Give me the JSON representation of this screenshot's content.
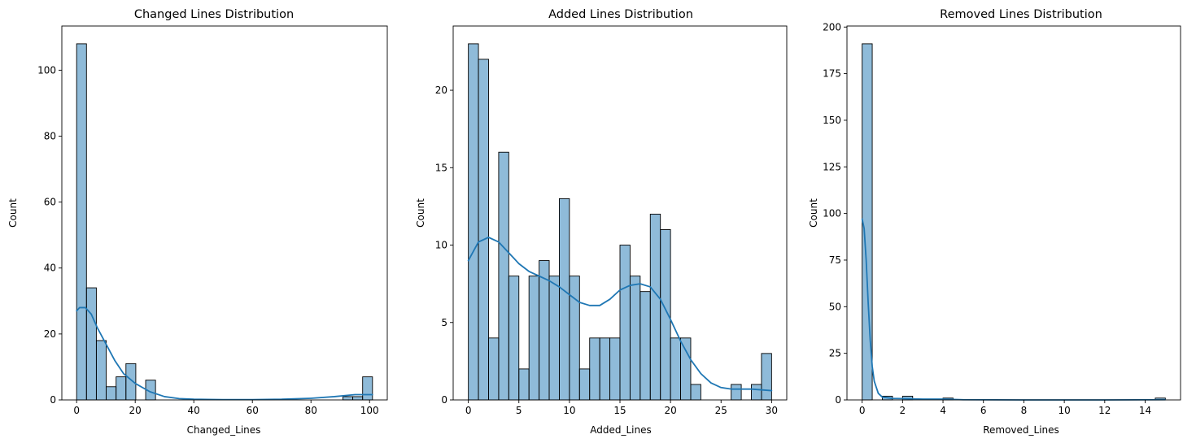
{
  "chart_data": [
    {
      "type": "bar",
      "title": "Changed Lines Distribution",
      "xlabel": "Changed_Lines",
      "ylabel": "Count",
      "xlim": [
        -5.05,
        106.05
      ],
      "ylim": [
        0,
        113.4
      ],
      "xticks": [
        0,
        20,
        40,
        60,
        80,
        100
      ],
      "yticks": [
        0,
        20,
        40,
        60,
        80,
        100
      ],
      "bin_width": 3.3667,
      "bins": [
        {
          "x": 0.0,
          "count": 108
        },
        {
          "x": 3.367,
          "count": 34
        },
        {
          "x": 6.733,
          "count": 18
        },
        {
          "x": 10.1,
          "count": 4
        },
        {
          "x": 13.467,
          "count": 7
        },
        {
          "x": 16.833,
          "count": 11
        },
        {
          "x": 20.2,
          "count": 0
        },
        {
          "x": 23.567,
          "count": 6
        },
        {
          "x": 90.9,
          "count": 1
        },
        {
          "x": 94.267,
          "count": 1
        },
        {
          "x": 97.633,
          "count": 7
        }
      ],
      "kde": [
        [
          0,
          27
        ],
        [
          1,
          28
        ],
        [
          3,
          28
        ],
        [
          5,
          26
        ],
        [
          7,
          22
        ],
        [
          10,
          17
        ],
        [
          13,
          12
        ],
        [
          16,
          8
        ],
        [
          20,
          5
        ],
        [
          25,
          2.5
        ],
        [
          30,
          1
        ],
        [
          35,
          0.4
        ],
        [
          40,
          0.2
        ],
        [
          50,
          0.1
        ],
        [
          60,
          0.1
        ],
        [
          70,
          0.2
        ],
        [
          80,
          0.5
        ],
        [
          88,
          1
        ],
        [
          95,
          1.6
        ],
        [
          101,
          1.6
        ]
      ],
      "bar_color": "#1f77b4",
      "bar_alpha": 0.5,
      "line_color": "#1f77b4"
    },
    {
      "type": "bar",
      "title": "Added Lines Distribution",
      "xlabel": "Added_Lines",
      "ylabel": "Count",
      "xlim": [
        -1.5,
        31.5
      ],
      "ylim": [
        0,
        24.15
      ],
      "xticks": [
        0,
        5,
        10,
        15,
        20,
        25,
        30
      ],
      "yticks": [
        0,
        5,
        10,
        15,
        20
      ],
      "bin_width": 1.0,
      "bins": [
        {
          "x": 0,
          "count": 23
        },
        {
          "x": 1,
          "count": 22
        },
        {
          "x": 2,
          "count": 4
        },
        {
          "x": 3,
          "count": 16
        },
        {
          "x": 4,
          "count": 8
        },
        {
          "x": 5,
          "count": 2
        },
        {
          "x": 6,
          "count": 8
        },
        {
          "x": 7,
          "count": 9
        },
        {
          "x": 8,
          "count": 8
        },
        {
          "x": 9,
          "count": 13
        },
        {
          "x": 10,
          "count": 8
        },
        {
          "x": 11,
          "count": 2
        },
        {
          "x": 12,
          "count": 4
        },
        {
          "x": 13,
          "count": 4
        },
        {
          "x": 14,
          "count": 4
        },
        {
          "x": 15,
          "count": 10
        },
        {
          "x": 16,
          "count": 8
        },
        {
          "x": 17,
          "count": 7
        },
        {
          "x": 18,
          "count": 12
        },
        {
          "x": 19,
          "count": 11
        },
        {
          "x": 20,
          "count": 4
        },
        {
          "x": 21,
          "count": 4
        },
        {
          "x": 22,
          "count": 1
        },
        {
          "x": 23,
          "count": 0
        },
        {
          "x": 24,
          "count": 0
        },
        {
          "x": 25,
          "count": 0
        },
        {
          "x": 26,
          "count": 1
        },
        {
          "x": 27,
          "count": 0
        },
        {
          "x": 28,
          "count": 1
        },
        {
          "x": 29,
          "count": 3
        }
      ],
      "kde": [
        [
          0,
          9
        ],
        [
          1,
          10.2
        ],
        [
          2,
          10.5
        ],
        [
          3,
          10.2
        ],
        [
          4,
          9.5
        ],
        [
          5,
          8.8
        ],
        [
          6,
          8.3
        ],
        [
          7,
          8
        ],
        [
          8,
          7.7
        ],
        [
          9,
          7.3
        ],
        [
          10,
          6.8
        ],
        [
          11,
          6.3
        ],
        [
          12,
          6.1
        ],
        [
          13,
          6.1
        ],
        [
          14,
          6.5
        ],
        [
          15,
          7.1
        ],
        [
          16,
          7.4
        ],
        [
          17,
          7.5
        ],
        [
          18,
          7.3
        ],
        [
          19,
          6.5
        ],
        [
          20,
          5.2
        ],
        [
          21,
          3.8
        ],
        [
          22,
          2.6
        ],
        [
          23,
          1.7
        ],
        [
          24,
          1.1
        ],
        [
          25,
          0.8
        ],
        [
          26,
          0.7
        ],
        [
          28,
          0.7
        ],
        [
          30,
          0.6
        ]
      ],
      "bar_color": "#1f77b4",
      "bar_alpha": 0.5,
      "line_color": "#1f77b4"
    },
    {
      "type": "bar",
      "title": "Removed Lines Distribution",
      "xlabel": "Removed_Lines",
      "ylabel": "Count",
      "xlim": [
        -0.75,
        15.75
      ],
      "ylim": [
        0,
        200.55
      ],
      "xticks": [
        0,
        2,
        4,
        6,
        8,
        10,
        12,
        14
      ],
      "yticks": [
        0,
        25,
        50,
        75,
        100,
        125,
        150,
        175,
        200
      ],
      "bin_width": 0.5,
      "bins": [
        {
          "x": 0,
          "count": 191
        },
        {
          "x": 0.5,
          "count": 0
        },
        {
          "x": 1.0,
          "count": 2
        },
        {
          "x": 1.5,
          "count": 0
        },
        {
          "x": 2.0,
          "count": 2
        },
        {
          "x": 2.5,
          "count": 0
        },
        {
          "x": 3.0,
          "count": 0
        },
        {
          "x": 3.5,
          "count": 0
        },
        {
          "x": 4.0,
          "count": 1
        },
        {
          "x": 14.5,
          "count": 1
        }
      ],
      "kde": [
        [
          0,
          97
        ],
        [
          0.1,
          92
        ],
        [
          0.2,
          75
        ],
        [
          0.3,
          52
        ],
        [
          0.4,
          32
        ],
        [
          0.5,
          18
        ],
        [
          0.6,
          10
        ],
        [
          0.8,
          3.5
        ],
        [
          1.0,
          1.5
        ],
        [
          1.5,
          0.8
        ],
        [
          2.0,
          0.7
        ],
        [
          3.0,
          0.4
        ],
        [
          4.0,
          0.4
        ],
        [
          5.0,
          0.1
        ],
        [
          8.0,
          0
        ],
        [
          12.0,
          0
        ],
        [
          15.0,
          0.1
        ]
      ],
      "bar_color": "#1f77b4",
      "bar_alpha": 0.5,
      "line_color": "#1f77b4"
    }
  ]
}
